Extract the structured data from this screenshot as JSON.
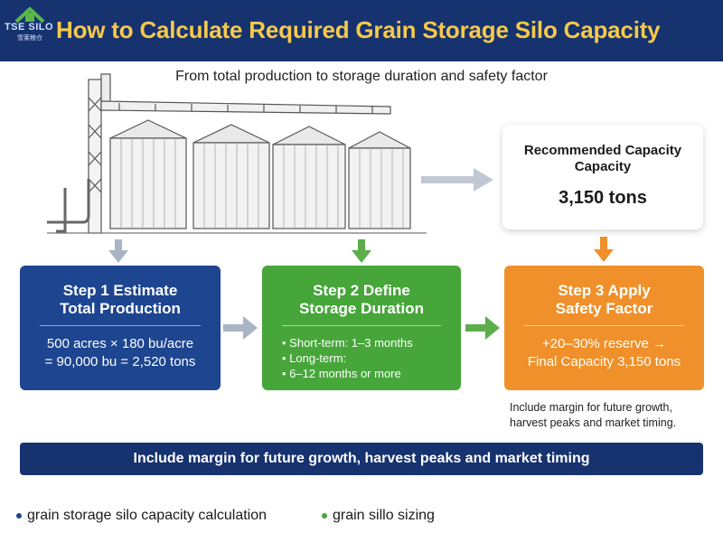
{
  "header": {
    "logo_text": "TSE SILO",
    "logo_subtext": "雪莱粮仓",
    "title": "How to Calculate Required Grain Storage Silo Capacity"
  },
  "subtitle": "From total production to storage duration and safety factor",
  "recommended": {
    "title_line1": "Recommended Capacity",
    "title_line2": "Capacity",
    "value": "3,150 tons"
  },
  "steps": [
    {
      "title_line1": "Step 1 Estimate",
      "title_line2": "Total Production",
      "body_line1": "500 acres × 180 bu/acre",
      "body_line2": "= 90,000 bu = 2,520 tons",
      "color": "#1d4590"
    },
    {
      "title_line1": "Step 2 Define",
      "title_line2": "Storage Duration",
      "items": [
        "Short-term: 1–3 months",
        "Long-term:",
        "6–12 months or more"
      ],
      "color": "#46a63a"
    },
    {
      "title_line1": "Step 3 Apply",
      "title_line2": "Safety Factor",
      "body_line1": "+20–30% reserve →",
      "body_line2": "Final Capacity 3,150 tons",
      "color": "#f0902a"
    }
  ],
  "side_note": {
    "line1": "Include margin for future growth,",
    "line2": "harvest peaks and market timing."
  },
  "banner": "Include margin for future growth, harvest peaks and market timing",
  "tags": [
    {
      "label": "grain storage silo capacity calculation",
      "color": "#1d4590"
    },
    {
      "label": "grain sillo sizing",
      "color": "#46a63a"
    }
  ],
  "colors": {
    "header_bg": "#16326f",
    "title_gold": "#f6c94a",
    "arrow_gray": "#a9b4c4",
    "arrow_green": "#5cae4a",
    "arrow_orange": "#f0902a"
  },
  "illustration": "grain-silo-complex"
}
